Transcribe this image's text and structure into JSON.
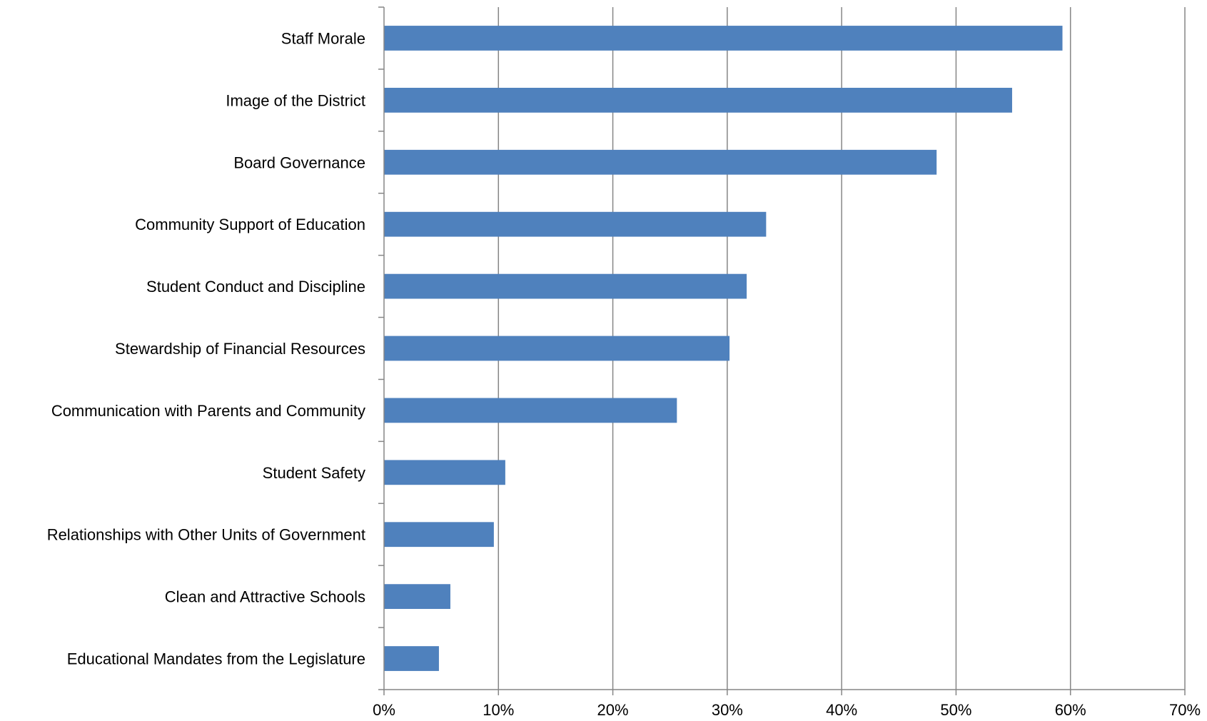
{
  "chart_data": {
    "type": "bar",
    "orientation": "horizontal",
    "title": "",
    "xlabel": "",
    "ylabel": "",
    "categories": [
      "Staff Morale",
      "Image of the District",
      "Board Governance",
      "Community Support of Education",
      "Student Conduct and Discipline",
      "Stewardship of Financial Resources",
      "Communication with Parents and Community",
      "Student Safety",
      "Relationships with Other Units of Government",
      "Clean and Attractive Schools",
      "Educational Mandates from the Legislature"
    ],
    "values": [
      59.3,
      54.9,
      48.3,
      33.4,
      31.7,
      30.2,
      25.6,
      10.6,
      9.6,
      5.8,
      4.8
    ],
    "xlim": [
      0,
      70
    ],
    "xticks": [
      0,
      10,
      20,
      30,
      40,
      50,
      60,
      70
    ],
    "xtick_labels": [
      "0%",
      "10%",
      "20%",
      "30%",
      "40%",
      "50%",
      "60%",
      "70%"
    ],
    "grid": "vertical",
    "legend": "none",
    "bar_color": "#4F81BD",
    "grid_color": "#868686"
  }
}
